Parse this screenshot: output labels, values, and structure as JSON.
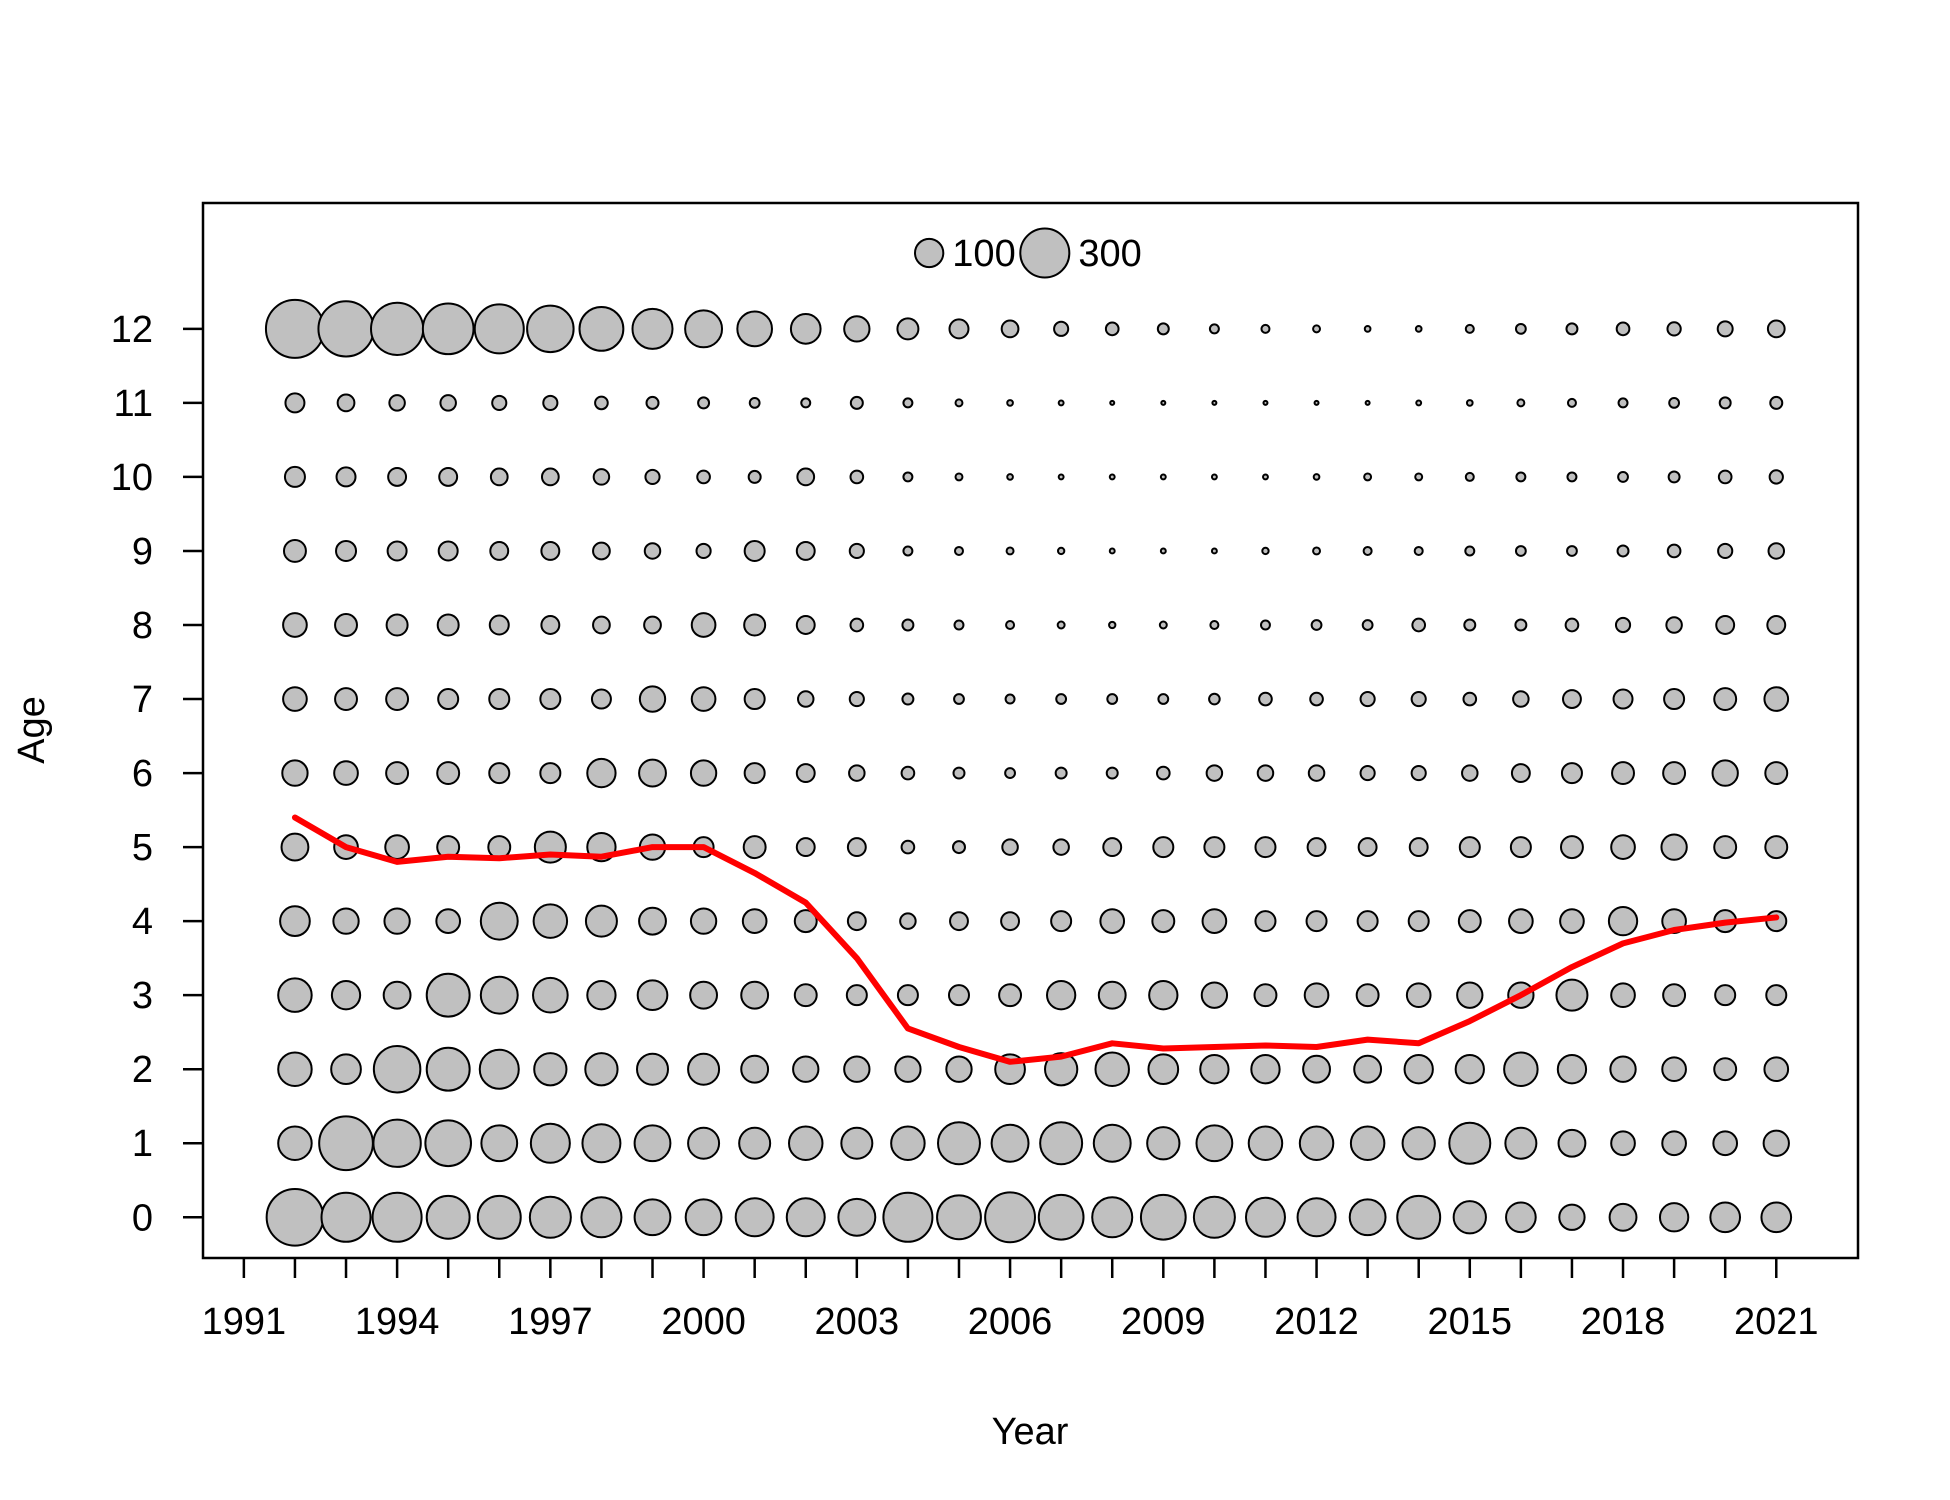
{
  "chart_data": {
    "type": "scatter",
    "subtype": "bubble",
    "title": "",
    "xlabel": "Year",
    "ylabel": "Age",
    "xlim": [
      1990.2,
      2022.6
    ],
    "ylim": [
      -0.55,
      13.7
    ],
    "x_ticks": [
      1991,
      1992,
      1993,
      1994,
      1995,
      1996,
      1997,
      1998,
      1999,
      2000,
      2001,
      2002,
      2003,
      2004,
      2005,
      2006,
      2007,
      2008,
      2009,
      2010,
      2011,
      2012,
      2013,
      2014,
      2015,
      2016,
      2017,
      2018,
      2019,
      2020,
      2021
    ],
    "x_tick_labels": [
      "1991",
      "",
      "",
      "1994",
      "",
      "",
      "1997",
      "",
      "",
      "2000",
      "",
      "",
      "2003",
      "",
      "",
      "2006",
      "",
      "",
      "2009",
      "",
      "",
      "2012",
      "",
      "",
      "2015",
      "",
      "",
      "2018",
      "",
      "",
      "2021"
    ],
    "y_ticks": [
      0,
      1,
      2,
      3,
      4,
      5,
      6,
      7,
      8,
      9,
      10,
      11,
      12
    ],
    "y_tick_labels": [
      "0",
      "1",
      "2",
      "3",
      "4",
      "5",
      "6",
      "7",
      "8",
      "9",
      "10",
      "11",
      "12"
    ],
    "grid": false,
    "bubble_fill": "#c0c0c0",
    "bubble_stroke": "#000000",
    "legend": {
      "position": "top-center",
      "entries": [
        {
          "value": 100,
          "label": "100"
        },
        {
          "value": 300,
          "label": "300"
        }
      ]
    },
    "years": [
      1992,
      1993,
      1994,
      1995,
      1996,
      1997,
      1998,
      1999,
      2000,
      2001,
      2002,
      2003,
      2004,
      2005,
      2006,
      2007,
      2008,
      2009,
      2010,
      2011,
      2012,
      2013,
      2014,
      2015,
      2016,
      2017,
      2018,
      2019,
      2020,
      2021
    ],
    "ages": [
      0,
      1,
      2,
      3,
      4,
      5,
      6,
      7,
      8,
      9,
      10,
      11,
      12
    ],
    "bubble_values_by_age": [
      [
        400,
        300,
        300,
        230,
        230,
        210,
        200,
        160,
        160,
        180,
        180,
        170,
        300,
        240,
        310,
        250,
        200,
        250,
        210,
        190,
        180,
        160,
        230,
        130,
        110,
        80,
        90,
        100,
        110,
        110
      ],
      [
        140,
        360,
        280,
        260,
        160,
        190,
        180,
        160,
        120,
        120,
        140,
        120,
        140,
        220,
        170,
        220,
        170,
        130,
        160,
        140,
        140,
        140,
        130,
        210,
        120,
        90,
        70,
        70,
        70,
        80
      ],
      [
        140,
        110,
        270,
        230,
        190,
        130,
        130,
        120,
        120,
        90,
        80,
        80,
        80,
        80,
        110,
        130,
        140,
        110,
        100,
        100,
        90,
        90,
        100,
        100,
        140,
        100,
        80,
        70,
        60,
        70
      ],
      [
        140,
        100,
        90,
        230,
        170,
        150,
        100,
        110,
        90,
        90,
        60,
        50,
        50,
        50,
        60,
        100,
        90,
        100,
        80,
        60,
        70,
        60,
        70,
        80,
        80,
        120,
        70,
        60,
        50,
        50
      ],
      [
        110,
        80,
        80,
        70,
        170,
        140,
        120,
        90,
        80,
        70,
        60,
        40,
        30,
        40,
        40,
        50,
        70,
        60,
        70,
        50,
        50,
        50,
        50,
        60,
        70,
        70,
        100,
        70,
        60,
        50
      ],
      [
        90,
        70,
        70,
        60,
        60,
        120,
        100,
        80,
        50,
        60,
        40,
        40,
        20,
        18,
        30,
        30,
        40,
        50,
        50,
        50,
        40,
        40,
        40,
        50,
        50,
        60,
        70,
        80,
        60,
        60
      ],
      [
        80,
        70,
        60,
        60,
        50,
        50,
        100,
        90,
        80,
        50,
        40,
        30,
        20,
        15,
        12,
        15,
        15,
        20,
        30,
        30,
        30,
        25,
        25,
        30,
        40,
        50,
        60,
        60,
        80,
        60
      ],
      [
        70,
        60,
        60,
        50,
        50,
        50,
        45,
        80,
        70,
        50,
        30,
        25,
        15,
        12,
        10,
        12,
        12,
        12,
        14,
        20,
        20,
        25,
        25,
        20,
        30,
        40,
        45,
        50,
        60,
        70
      ],
      [
        70,
        60,
        55,
        55,
        45,
        40,
        35,
        35,
        70,
        55,
        40,
        20,
        15,
        10,
        8,
        6,
        5,
        6,
        8,
        10,
        12,
        12,
        20,
        15,
        15,
        20,
        25,
        30,
        40,
        40
      ],
      [
        60,
        50,
        45,
        45,
        40,
        40,
        35,
        30,
        25,
        50,
        40,
        25,
        10,
        8,
        6,
        5,
        3,
        3,
        3,
        5,
        6,
        8,
        8,
        10,
        12,
        12,
        15,
        20,
        25,
        30
      ],
      [
        50,
        45,
        40,
        40,
        35,
        35,
        30,
        25,
        20,
        18,
        35,
        20,
        10,
        6,
        4,
        3,
        3,
        3,
        3,
        3,
        4,
        6,
        6,
        8,
        10,
        10,
        12,
        15,
        20,
        22
      ],
      [
        45,
        35,
        30,
        30,
        25,
        25,
        20,
        18,
        15,
        12,
        10,
        18,
        10,
        6,
        4,
        3,
        2,
        2,
        2,
        2,
        2,
        2,
        3,
        4,
        6,
        8,
        10,
        12,
        15,
        18
      ],
      [
        420,
        380,
        340,
        320,
        300,
        270,
        240,
        200,
        170,
        150,
        110,
        80,
        55,
        45,
        35,
        25,
        20,
        15,
        10,
        8,
        6,
        4,
        4,
        8,
        12,
        15,
        20,
        22,
        28,
        35
      ]
    ],
    "series": [
      {
        "name": "",
        "type": "line",
        "color": "#ff0000",
        "x": [
          1992,
          1993,
          1994,
          1995,
          1996,
          1997,
          1998,
          1999,
          2000,
          2001,
          2002,
          2003,
          2004,
          2005,
          2006,
          2007,
          2008,
          2009,
          2010,
          2011,
          2012,
          2013,
          2014,
          2015,
          2016,
          2017,
          2018,
          2019,
          2020,
          2021
        ],
        "y": [
          5.4,
          5.0,
          4.8,
          4.87,
          4.85,
          4.9,
          4.87,
          5.0,
          5.0,
          4.65,
          4.25,
          3.5,
          2.55,
          2.3,
          2.1,
          2.17,
          2.35,
          2.28,
          2.3,
          2.32,
          2.3,
          2.4,
          2.35,
          2.65,
          3.0,
          3.38,
          3.7,
          3.88,
          3.98,
          4.05
        ]
      }
    ]
  }
}
